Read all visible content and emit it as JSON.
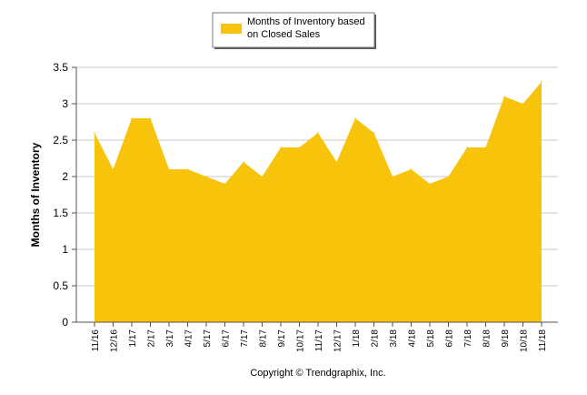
{
  "chart_data": {
    "type": "area",
    "legend": {
      "label_line1": "Months of Inventory based",
      "label_line2": "on Closed Sales",
      "placement": "top-center"
    },
    "ylabel": "Months of Inventory",
    "xlabel": "",
    "ylim": [
      0,
      3.5
    ],
    "yticks": [
      "0",
      "0.5",
      "1",
      "1.5",
      "2",
      "2.5",
      "3",
      "3.5"
    ],
    "ytick_values": [
      0,
      0.5,
      1,
      1.5,
      2,
      2.5,
      3,
      3.5
    ],
    "grid": true,
    "categories": [
      "11/16",
      "12/16",
      "1/17",
      "2/17",
      "3/17",
      "4/17",
      "5/17",
      "6/17",
      "7/17",
      "8/17",
      "9/17",
      "10/17",
      "11/17",
      "12/17",
      "1/18",
      "2/18",
      "3/18",
      "4/18",
      "5/18",
      "6/18",
      "7/18",
      "8/18",
      "9/18",
      "10/18",
      "11/18"
    ],
    "series": [
      {
        "name": "Months of Inventory based on Closed Sales",
        "values": [
          2.6,
          2.1,
          2.8,
          2.8,
          2.1,
          2.1,
          2.0,
          1.9,
          2.2,
          2.0,
          2.4,
          2.4,
          2.6,
          2.2,
          2.8,
          2.6,
          2.0,
          2.1,
          1.9,
          2.0,
          2.4,
          2.4,
          3.1,
          3.0,
          3.3
        ]
      }
    ],
    "colors": {
      "fill": "#F8C30B",
      "grid": "#c8c8c8",
      "axis": "#555555"
    },
    "footer": "Copyright © Trendgraphix, Inc."
  }
}
